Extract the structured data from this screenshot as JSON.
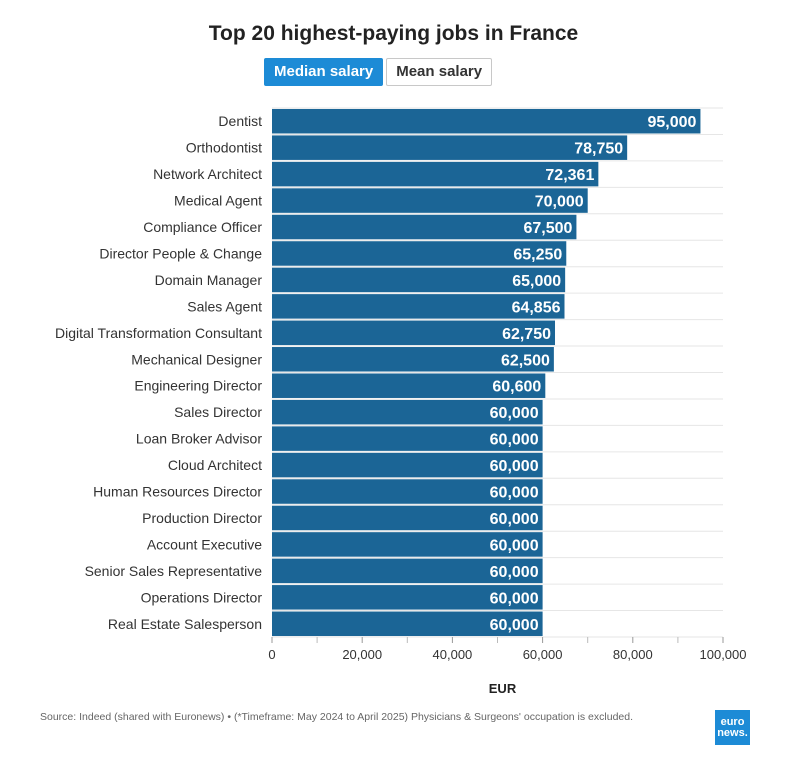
{
  "title": "Top 20 highest-paying jobs in France",
  "tabs": [
    {
      "label": "Median salary",
      "active": true
    },
    {
      "label": "Mean salary",
      "active": false
    }
  ],
  "footer": "Source: Indeed (shared with Euronews) • (*Timeframe: May 2024 to April 2025) Physicians & Surgeons' occupation is excluded.",
  "logo": {
    "line1": "euro",
    "line2": "news."
  },
  "colors": {
    "bar": "#1b6596",
    "accent": "#1d8bd6"
  },
  "chart_data": {
    "type": "bar",
    "orientation": "horizontal",
    "categories": [
      "Dentist",
      "Orthodontist",
      "Network Architect",
      "Medical Agent",
      "Compliance Officer",
      "Director People & Change",
      "Domain Manager",
      "Sales Agent",
      "Digital Transformation Consultant",
      "Mechanical Designer",
      "Engineering Director",
      "Sales Director",
      "Loan Broker Advisor",
      "Cloud Architect",
      "Human Resources Director",
      "Production Director",
      "Account Executive",
      "Senior Sales Representative",
      "Operations Director",
      "Real Estate Salesperson"
    ],
    "values": [
      95000,
      78750,
      72361,
      70000,
      67500,
      65250,
      65000,
      64856,
      62750,
      62500,
      60600,
      60000,
      60000,
      60000,
      60000,
      60000,
      60000,
      60000,
      60000,
      60000
    ],
    "value_labels": [
      "95,000",
      "78,750",
      "72,361",
      "70,000",
      "67,500",
      "65,250",
      "65,000",
      "64,856",
      "62,750",
      "62,500",
      "60,600",
      "60,000",
      "60,000",
      "60,000",
      "60,000",
      "60,000",
      "60,000",
      "60,000",
      "60,000",
      "60,000"
    ],
    "xlabel": "EUR",
    "xlim": [
      0,
      100000
    ],
    "xticks": [
      0,
      20000,
      40000,
      60000,
      80000,
      100000
    ],
    "xtick_labels": [
      "0",
      "20,000",
      "40,000",
      "60,000",
      "80,000",
      "100,000"
    ],
    "grid": true
  }
}
